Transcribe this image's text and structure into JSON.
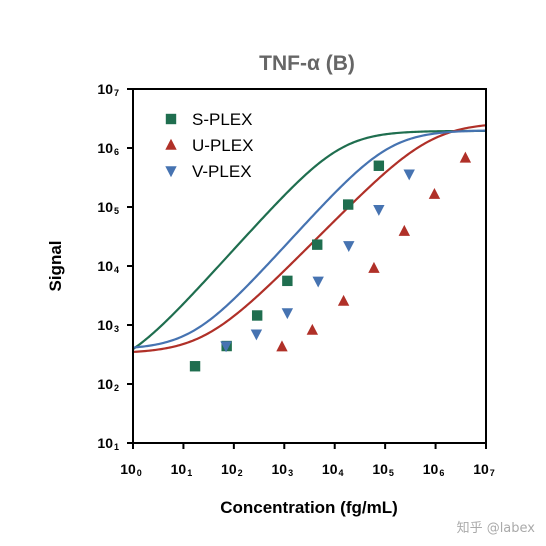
{
  "watermark": "知乎 @labex",
  "chart_data": {
    "type": "scatter",
    "title": "TNF-α (B)",
    "xlabel": "Concentration (fg/mL)",
    "ylabel": "Signal",
    "x_scale": "log",
    "y_scale": "log",
    "xlim": [
      1,
      10000000
    ],
    "ylim": [
      10,
      10000000
    ],
    "x_ticks": [
      {
        "base": "10",
        "exp": "0",
        "value": 1
      },
      {
        "base": "10",
        "exp": "1",
        "value": 10
      },
      {
        "base": "10",
        "exp": "2",
        "value": 100
      },
      {
        "base": "10",
        "exp": "3",
        "value": 1000
      },
      {
        "base": "10",
        "exp": "4",
        "value": 10000
      },
      {
        "base": "10",
        "exp": "5",
        "value": 100000
      },
      {
        "base": "10",
        "exp": "6",
        "value": 1000000
      },
      {
        "base": "10",
        "exp": "7",
        "value": 10000000
      }
    ],
    "y_ticks": [
      {
        "base": "10",
        "exp": "1",
        "value": 10
      },
      {
        "base": "10",
        "exp": "2",
        "value": 100
      },
      {
        "base": "10",
        "exp": "3",
        "value": 1000
      },
      {
        "base": "10",
        "exp": "4",
        "value": 10000
      },
      {
        "base": "10",
        "exp": "5",
        "value": 100000
      },
      {
        "base": "10",
        "exp": "6",
        "value": 1000000
      },
      {
        "base": "10",
        "exp": "7",
        "value": 10000000
      }
    ],
    "grid": false,
    "legend_position": "top-left",
    "series": [
      {
        "name": "S-PLEX",
        "marker": "square",
        "color": "#1f6e4f",
        "points": [
          {
            "x": 17,
            "y": 200
          },
          {
            "x": 72,
            "y": 440
          },
          {
            "x": 290,
            "y": 1450
          },
          {
            "x": 1150,
            "y": 5600
          },
          {
            "x": 4500,
            "y": 23000
          },
          {
            "x": 18500,
            "y": 110000
          },
          {
            "x": 75000,
            "y": 500000
          }
        ],
        "fit": {
          "bottom": 150,
          "top": 1950000,
          "ec50": 13000,
          "hill": 0.95
        }
      },
      {
        "name": "U-PLEX",
        "marker": "triangle-up",
        "color": "#b03028",
        "points": [
          {
            "x": 900,
            "y": 430
          },
          {
            "x": 3600,
            "y": 820
          },
          {
            "x": 15000,
            "y": 2550
          },
          {
            "x": 60000,
            "y": 9200
          },
          {
            "x": 240000,
            "y": 39000
          },
          {
            "x": 950000,
            "y": 165000
          },
          {
            "x": 3900000,
            "y": 680000
          }
        ],
        "fit": {
          "bottom": 330,
          "top": 2700000,
          "ec50": 800000,
          "hill": 0.87
        }
      },
      {
        "name": "V-PLEX",
        "marker": "triangle-down",
        "color": "#4673b1",
        "points": [
          {
            "x": 70,
            "y": 440
          },
          {
            "x": 280,
            "y": 700
          },
          {
            "x": 1150,
            "y": 1600
          },
          {
            "x": 4700,
            "y": 5500
          },
          {
            "x": 19000,
            "y": 22000
          },
          {
            "x": 75000,
            "y": 90000
          },
          {
            "x": 300000,
            "y": 360000
          }
        ],
        "fit": {
          "bottom": 385,
          "top": 2000000,
          "ec50": 120000,
          "hill": 0.95
        }
      }
    ]
  }
}
